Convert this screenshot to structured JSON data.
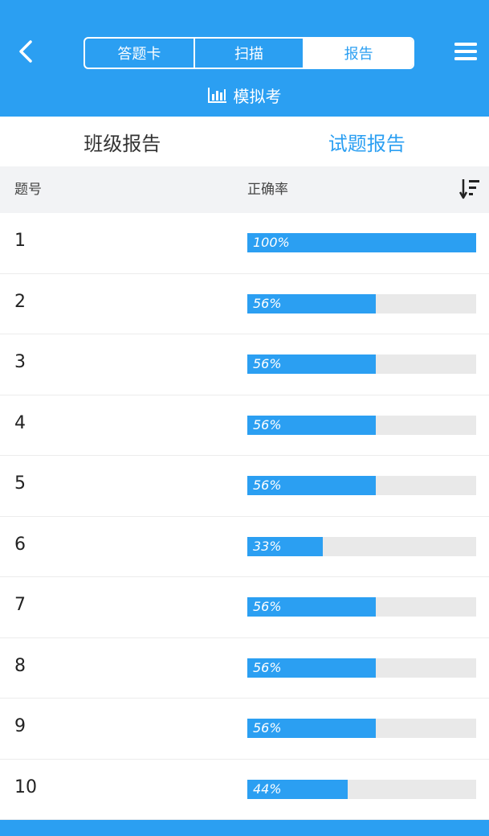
{
  "header": {
    "segments": [
      {
        "label": "答题卡",
        "active": false
      },
      {
        "label": "扫描",
        "active": false
      },
      {
        "label": "报告",
        "active": true
      }
    ],
    "subtitle": "模拟考",
    "accent_color": "#2b9ff2"
  },
  "tabs": [
    {
      "label": "班级报告",
      "active": false
    },
    {
      "label": "试题报告",
      "active": true
    }
  ],
  "table": {
    "col_question": "题号",
    "col_rate": "正确率",
    "rows": [
      {
        "num": "1",
        "rate_label": "100%",
        "rate": 100
      },
      {
        "num": "2",
        "rate_label": "56%",
        "rate": 56
      },
      {
        "num": "3",
        "rate_label": "56%",
        "rate": 56
      },
      {
        "num": "4",
        "rate_label": "56%",
        "rate": 56
      },
      {
        "num": "5",
        "rate_label": "56%",
        "rate": 56
      },
      {
        "num": "6",
        "rate_label": "33%",
        "rate": 33
      },
      {
        "num": "7",
        "rate_label": "56%",
        "rate": 56
      },
      {
        "num": "8",
        "rate_label": "56%",
        "rate": 56
      },
      {
        "num": "9",
        "rate_label": "56%",
        "rate": 56
      },
      {
        "num": "10",
        "rate_label": "44%",
        "rate": 44
      }
    ]
  },
  "icons": {
    "back": "chevron-left-icon",
    "menu": "hamburger-menu-icon",
    "chart": "bar-chart-icon",
    "sort": "sort-descending-icon"
  }
}
